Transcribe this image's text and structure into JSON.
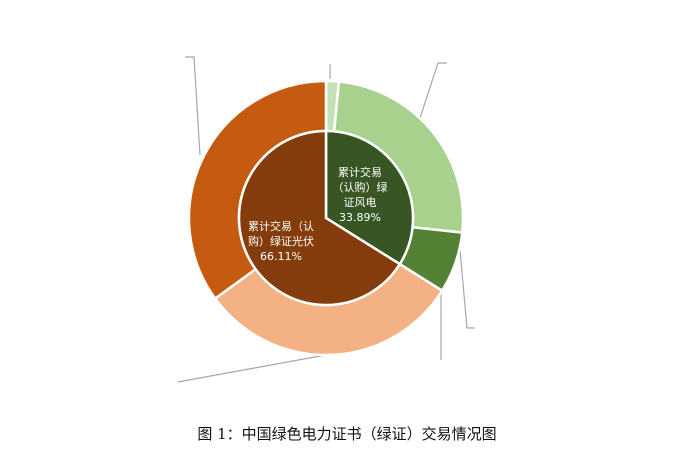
{
  "chart_data": {
    "type": "pie",
    "subtype": "nested-donut",
    "inner": {
      "categories": [
        "累计交易（认购）绿证风电",
        "累计交易（认购）绿证光伏"
      ],
      "values": [
        33.89,
        66.11
      ],
      "labels": [
        [
          "累计交易",
          "（认购）绿",
          "证风电",
          "33.89%"
        ],
        [
          "累计交易（认",
          "购）绿证光伏",
          "66.11%"
        ]
      ],
      "colors": [
        "#375623",
        "#843C0C"
      ]
    },
    "outer": {
      "values": [
        1.5,
        25.2,
        7.2,
        31.1,
        35.0
      ],
      "colors": [
        "#C5E0B4",
        "#A9D18E",
        "#548235",
        "#F4B183",
        "#C55A11"
      ]
    },
    "start_angle": "12 o'clock",
    "direction": "clockwise",
    "leader_line_color": "#A6A6A6"
  },
  "caption": "图 1：中国绿色电力证书（绿证）交易情况图"
}
